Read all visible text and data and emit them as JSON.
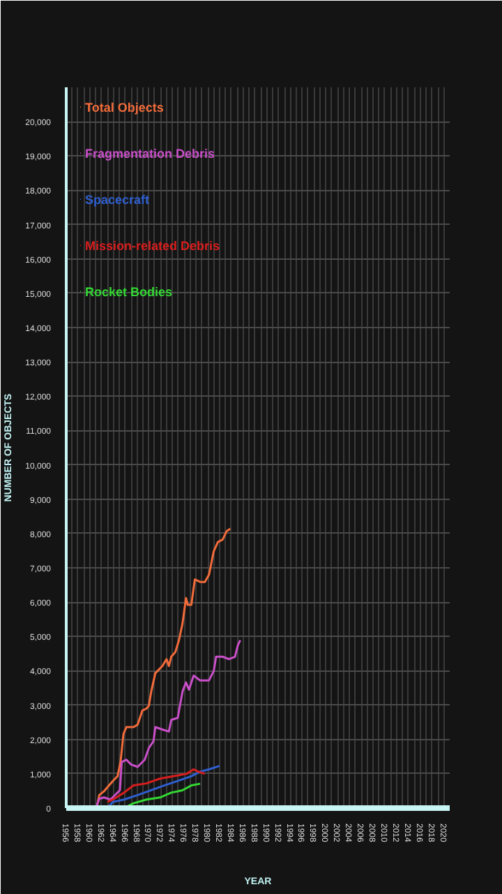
{
  "chart_data": {
    "type": "line",
    "xlabel": "YEAR",
    "ylabel": "NUMBER OF OBJECTS",
    "xlim": [
      1956,
      2021
    ],
    "ylim": [
      0,
      21000
    ],
    "xticks": [
      1956,
      1958,
      1960,
      1962,
      1964,
      1966,
      1968,
      1970,
      1972,
      1974,
      1976,
      1978,
      1980,
      1982,
      1984,
      1986,
      1988,
      1990,
      1992,
      1994,
      1996,
      1998,
      2000,
      2002,
      2004,
      2006,
      2008,
      2010,
      2012,
      2014,
      2016,
      2018,
      2020
    ],
    "yticks": [
      0,
      {
        "value": 1000,
        "label": "1,000"
      },
      {
        "value": 2000,
        "label": "2,000"
      },
      {
        "value": 3000,
        "label": "3,000"
      },
      {
        "value": 4000,
        "label": "4,000"
      },
      {
        "value": 5000,
        "label": "5,000"
      },
      {
        "value": 6000,
        "label": "6,000"
      },
      {
        "value": 7000,
        "label": "7,000"
      },
      {
        "value": 8000,
        "label": "8,000"
      },
      {
        "value": 9000,
        "label": "9,000"
      },
      {
        "value": 10000,
        "label": "10,000"
      },
      {
        "value": 11000,
        "label": "11,000"
      },
      {
        "value": 12000,
        "label": "12,000"
      },
      {
        "value": 13000,
        "label": "13,000"
      },
      {
        "value": 14000,
        "label": "14,000"
      },
      {
        "value": 15000,
        "label": "15,000"
      },
      {
        "value": 16000,
        "label": "16,000"
      },
      {
        "value": 17000,
        "label": "17,000"
      },
      {
        "value": 18000,
        "label": "18,000"
      },
      {
        "value": 19000,
        "label": "19,000"
      },
      {
        "value": 20000,
        "label": "20,000"
      }
    ],
    "grid": true,
    "legend": "top left",
    "marker": "none",
    "line_style": "solid",
    "series": [
      {
        "name": "Total Objects",
        "color": "#f26b3a",
        "x": [
          1961.2,
          1961.6,
          1962.4,
          1963.2,
          1963.9,
          1964.7,
          1965.2,
          1965.7,
          1966.2,
          1967.4,
          1968.1,
          1968.9,
          1969.6,
          1970,
          1970.4,
          1971.1,
          1972.3,
          1973,
          1973.4,
          1973.8,
          1974.5,
          1975.1,
          1975.7,
          1976.3,
          1976.6,
          1977.2,
          1977.8,
          1978.7,
          1979.5,
          1980.2,
          1981,
          1981.7,
          1982.5,
          1983.2,
          1983.8
        ],
        "values": [
          40,
          380,
          490,
          650,
          790,
          930,
          1340,
          2160,
          2360,
          2360,
          2430,
          2840,
          2900,
          2980,
          3390,
          3930,
          4140,
          4340,
          4140,
          4410,
          4550,
          4890,
          5370,
          6120,
          5920,
          5920,
          6660,
          6590,
          6590,
          6800,
          7480,
          7750,
          7820,
          8070,
          8140
        ]
      },
      {
        "name": "Fragmentation Debris",
        "color": "#c94fc9",
        "x": [
          1961,
          1961.6,
          1962.4,
          1963.5,
          1965.1,
          1965.4,
          1966.2,
          1967,
          1968.1,
          1969.3,
          1970,
          1970.8,
          1971.1,
          1972.3,
          1973.4,
          1973.8,
          1974.9,
          1975.7,
          1976.3,
          1976.8,
          1977.6,
          1978.7,
          1979.5,
          1980.2,
          1981,
          1981.4,
          1982.5,
          1983.6,
          1984.6,
          1985.1,
          1985.5
        ],
        "values": [
          0,
          270,
          310,
          250,
          520,
          1340,
          1410,
          1270,
          1200,
          1410,
          1750,
          1950,
          2360,
          2290,
          2230,
          2570,
          2630,
          3390,
          3660,
          3450,
          3860,
          3720,
          3720,
          3720,
          3990,
          4410,
          4410,
          4340,
          4410,
          4750,
          4890
        ]
      },
      {
        "name": "Spacecraft",
        "color": "#2f5fd0",
        "x": [
          1963,
          1963.9,
          1965.8,
          1968.1,
          1970.4,
          1972.6,
          1974.9,
          1977.2,
          1978.7,
          1980.2,
          1982
        ],
        "values": [
          0,
          180,
          250,
          380,
          520,
          660,
          790,
          930,
          1060,
          1130,
          1230
        ]
      },
      {
        "name": "Mission-related Debris",
        "color": "#d81e1e",
        "x": [
          1963,
          1963.9,
          1965.8,
          1967.4,
          1969.6,
          1971.9,
          1974.2,
          1976.4,
          1977.6,
          1978.4,
          1979.5
        ],
        "values": [
          180,
          250,
          450,
          660,
          720,
          860,
          930,
          1000,
          1130,
          1060,
          1000
        ]
      },
      {
        "name": "Rocket Bodies",
        "color": "#33d933",
        "x": [
          1956,
          1965.8,
          1967.4,
          1969.6,
          1971.9,
          1973.8,
          1975.7,
          1977.2,
          1978.7
        ],
        "values": [
          0,
          0,
          140,
          250,
          310,
          450,
          520,
          660,
          710
        ]
      }
    ]
  }
}
